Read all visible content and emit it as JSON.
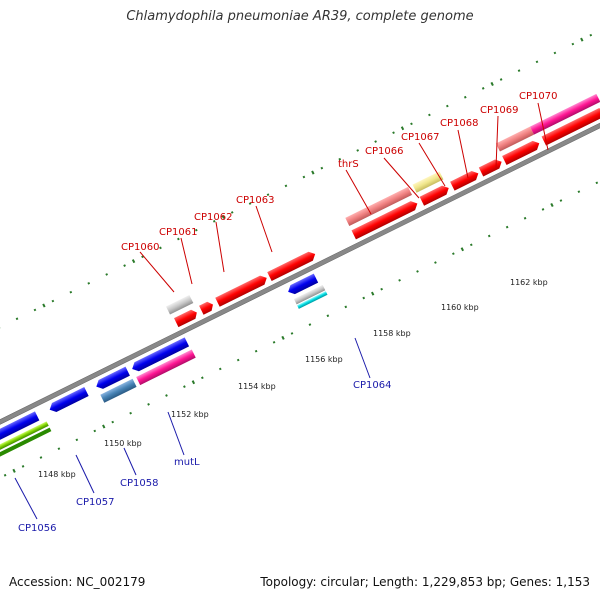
{
  "title": "Chlamydophila pneumoniae AR39, complete genome",
  "footer": {
    "accession": "Accession: NC_002179",
    "summary": "Topology: circular; Length: 1,229,853 bp; Genes: 1,153"
  },
  "scale_labels": [
    "1148 kbp",
    "1150 kbp",
    "1152 kbp",
    "1154 kbp",
    "1156 kbp",
    "1158 kbp",
    "1160 kbp",
    "1162 kbp"
  ],
  "gene_labels_forward": [
    "CP1060",
    "CP1061",
    "CP1062",
    "CP1063",
    "thrS",
    "CP1066",
    "CP1067",
    "CP1068",
    "CP1069",
    "CP1070"
  ],
  "gene_labels_reverse": [
    "CP1056",
    "CP1057",
    "CP1058",
    "mutL",
    "CP1064"
  ],
  "colors": {
    "forward_gene": "#ff0000",
    "reverse_gene": "#0000ee",
    "backbone": "#888888",
    "forward_label": "#cc0000",
    "reverse_label": "#1a1aaa",
    "tick": "#2a7a2a"
  }
}
